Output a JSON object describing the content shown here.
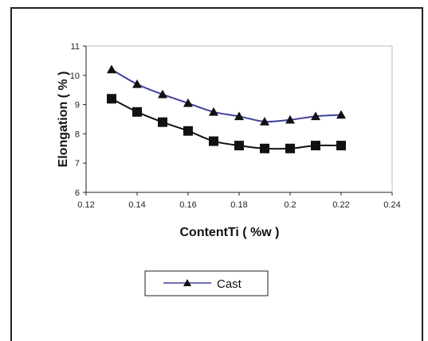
{
  "chart_data": {
    "type": "line",
    "title": "",
    "xlabel": "ContentTi ( %w )",
    "ylabel": "Elongation ( % )",
    "xlim": [
      0.12,
      0.24
    ],
    "ylim": [
      6,
      11
    ],
    "x_ticks": [
      0.12,
      0.14,
      0.16,
      0.18,
      0.2,
      0.22,
      0.24
    ],
    "x_tick_labels": [
      "0.12",
      "0.14",
      "0.16",
      "0.18",
      "0.2",
      "0.22",
      "0.24"
    ],
    "y_ticks": [
      6,
      7,
      8,
      9,
      10,
      11
    ],
    "y_tick_labels": [
      "6",
      "7",
      "8",
      "9",
      "10",
      "11"
    ],
    "grid": false,
    "legend_position": "bottom-left",
    "series": [
      {
        "name": "Cast",
        "color": "#4040a0",
        "marker": "triangle",
        "x": [
          0.13,
          0.14,
          0.15,
          0.16,
          0.17,
          0.18,
          0.19,
          0.2,
          0.21,
          0.22
        ],
        "values": [
          10.2,
          9.7,
          9.35,
          9.05,
          8.75,
          8.6,
          8.42,
          8.48,
          8.6,
          8.65
        ]
      },
      {
        "color": "#111111",
        "marker": "square",
        "x": [
          0.13,
          0.14,
          0.15,
          0.16,
          0.17,
          0.18,
          0.19,
          0.2,
          0.21,
          0.22
        ],
        "values": [
          9.2,
          8.75,
          8.4,
          8.1,
          7.75,
          7.6,
          7.5,
          7.5,
          7.6,
          7.6
        ]
      }
    ]
  }
}
